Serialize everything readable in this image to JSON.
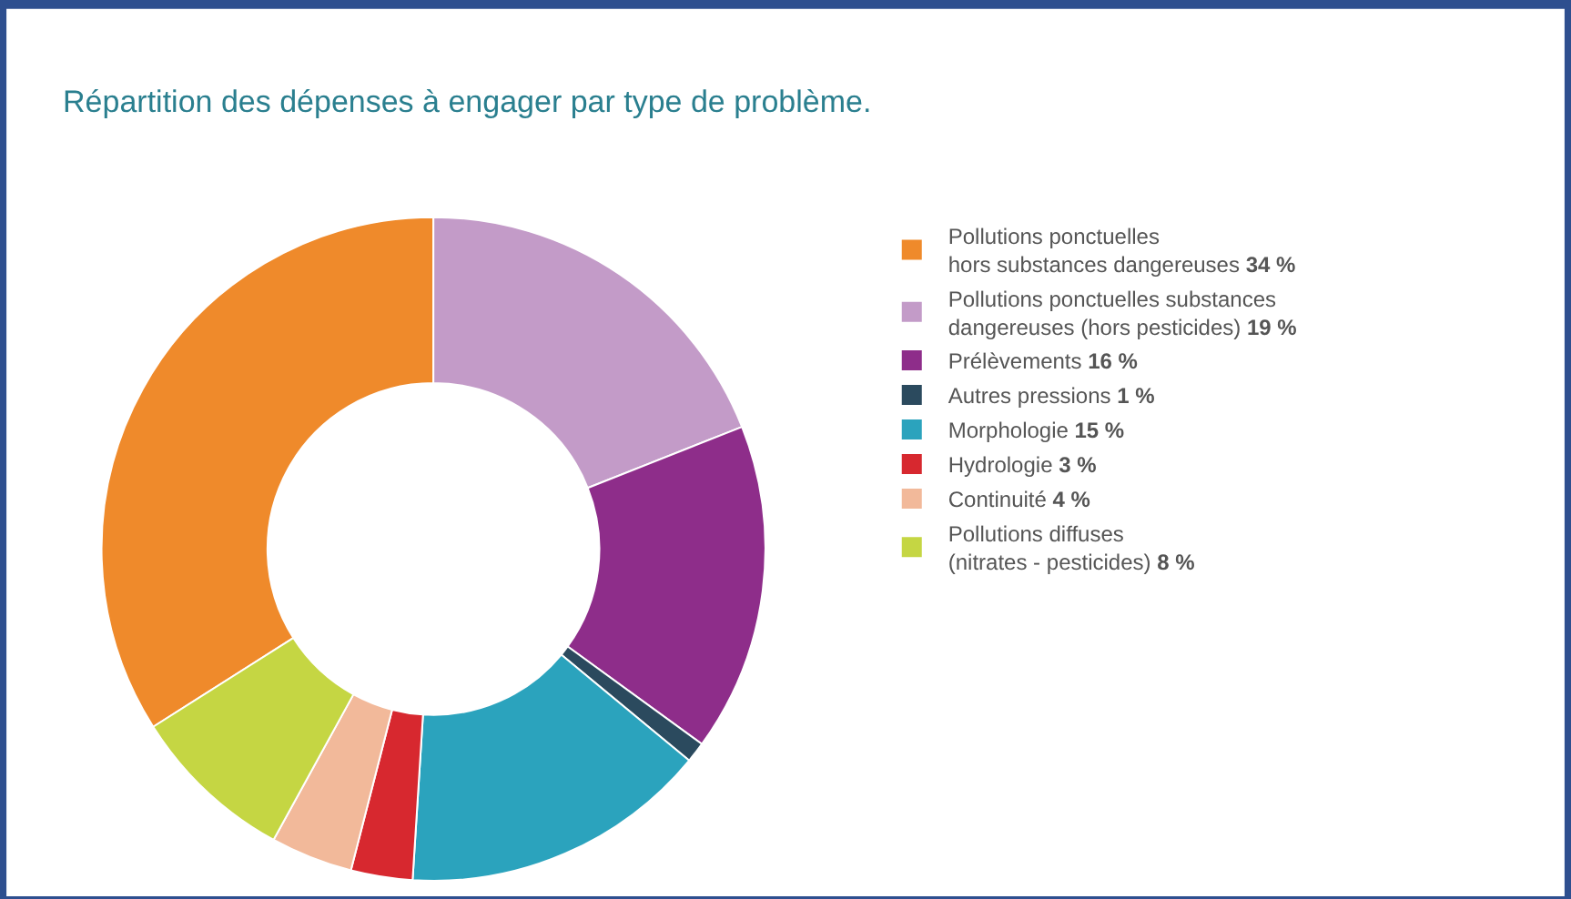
{
  "chart_data": {
    "type": "donut",
    "title": "Répartition des dépenses à engager par type de problème.",
    "categories": [
      "Pollutions ponctuelles\nhors substances dangereuses",
      "Pollutions ponctuelles substances\ndangereuses (hors pesticides)",
      "Prélèvements",
      "Autres pressions",
      "Morphologie",
      "Hydrologie",
      "Continuité",
      "Pollutions diffuses\n(nitrates - pesticides)"
    ],
    "values": [
      34,
      19,
      16,
      1,
      15,
      3,
      4,
      8
    ],
    "value_labels": [
      "34 %",
      "19 %",
      "16 %",
      "1 %",
      "15 %",
      "3 %",
      "4 %",
      "8 %"
    ],
    "colors": [
      "#ef8a2b",
      "#c39bc8",
      "#8e2d8a",
      "#2b4a5e",
      "#2ba3bd",
      "#d7282f",
      "#f2b99a",
      "#c5d643"
    ],
    "legend": "right"
  }
}
